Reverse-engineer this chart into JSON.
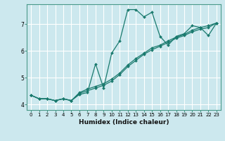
{
  "xlabel": "Humidex (Indice chaleur)",
  "bg_color": "#cce8ee",
  "grid_color": "#ffffff",
  "line_color": "#1a7a6e",
  "x_values": [
    0,
    1,
    2,
    3,
    4,
    5,
    6,
    7,
    8,
    9,
    10,
    11,
    12,
    13,
    14,
    15,
    16,
    17,
    18,
    19,
    20,
    21,
    22,
    23
  ],
  "line1": [
    4.35,
    4.22,
    4.22,
    4.15,
    4.22,
    4.15,
    4.38,
    4.45,
    5.52,
    4.62,
    5.92,
    6.38,
    7.55,
    7.55,
    7.28,
    7.45,
    6.55,
    6.22,
    6.55,
    6.65,
    6.95,
    6.88,
    6.58,
    7.05
  ],
  "line2": [
    4.35,
    4.22,
    4.22,
    4.15,
    4.22,
    4.15,
    4.42,
    4.52,
    4.62,
    4.72,
    4.88,
    5.12,
    5.42,
    5.65,
    5.88,
    6.05,
    6.18,
    6.32,
    6.48,
    6.58,
    6.72,
    6.82,
    6.88,
    7.05
  ],
  "line3": [
    4.35,
    4.22,
    4.22,
    4.15,
    4.22,
    4.15,
    4.45,
    4.58,
    4.68,
    4.78,
    4.95,
    5.18,
    5.48,
    5.72,
    5.92,
    6.12,
    6.22,
    6.38,
    6.52,
    6.62,
    6.78,
    6.88,
    6.95,
    7.05
  ],
  "ylim": [
    3.8,
    7.75
  ],
  "yticks": [
    4,
    5,
    6,
    7
  ],
  "xticks": [
    0,
    1,
    2,
    3,
    4,
    5,
    6,
    7,
    8,
    9,
    10,
    11,
    12,
    13,
    14,
    15,
    16,
    17,
    18,
    19,
    20,
    21,
    22,
    23
  ]
}
